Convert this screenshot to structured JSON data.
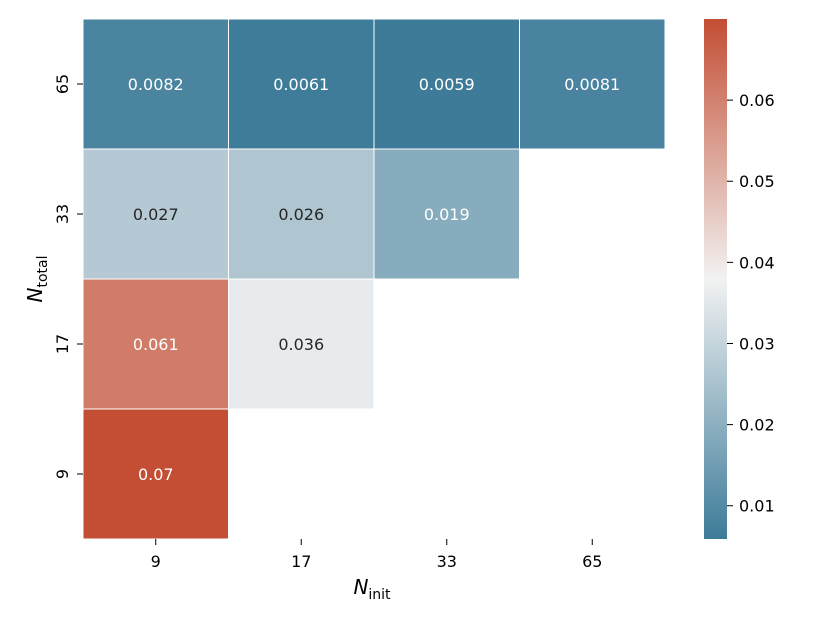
{
  "chart_data": {
    "type": "heatmap",
    "title": "",
    "xlabel": {
      "main": "N",
      "sub": "init"
    },
    "ylabel": {
      "main": "N",
      "sub": "total"
    },
    "x_categories": [
      "9",
      "17",
      "33",
      "65"
    ],
    "y_categories": [
      "65",
      "33",
      "17",
      "9"
    ],
    "cells": [
      {
        "x": "9",
        "y": "65",
        "value": 0.0082,
        "label": "0.0082"
      },
      {
        "x": "17",
        "y": "65",
        "value": 0.0061,
        "label": "0.0061"
      },
      {
        "x": "33",
        "y": "65",
        "value": 0.0059,
        "label": "0.0059"
      },
      {
        "x": "65",
        "y": "65",
        "value": 0.0081,
        "label": "0.0081"
      },
      {
        "x": "9",
        "y": "33",
        "value": 0.027,
        "label": "0.027"
      },
      {
        "x": "17",
        "y": "33",
        "value": 0.026,
        "label": "0.026"
      },
      {
        "x": "33",
        "y": "33",
        "value": 0.019,
        "label": "0.019"
      },
      {
        "x": "9",
        "y": "17",
        "value": 0.061,
        "label": "0.061"
      },
      {
        "x": "17",
        "y": "17",
        "value": 0.036,
        "label": "0.036"
      },
      {
        "x": "9",
        "y": "9",
        "value": 0.07,
        "label": "0.07"
      }
    ],
    "colorbar": {
      "range": [
        0.0059,
        0.07
      ],
      "ticks": [
        {
          "value": 0.01,
          "label": "0.01"
        },
        {
          "value": 0.02,
          "label": "0.02"
        },
        {
          "value": 0.03,
          "label": "0.03"
        },
        {
          "value": 0.04,
          "label": "0.04"
        },
        {
          "value": 0.05,
          "label": "0.05"
        },
        {
          "value": 0.06,
          "label": "0.06"
        }
      ],
      "colors": {
        "low": "#3d7b99",
        "mid": "#f2f2f2",
        "high": "#c34e34"
      }
    }
  }
}
